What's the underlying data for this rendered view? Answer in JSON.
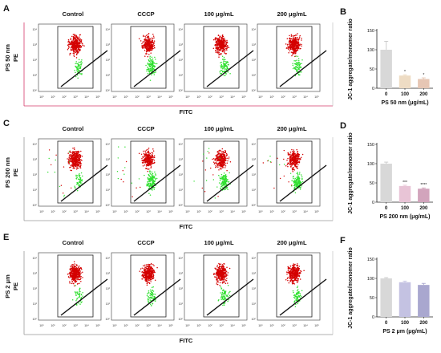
{
  "palette": {
    "red": "#d40000",
    "green": "#2fe02f",
    "frame": "#555555",
    "panelA_axis": "#d43a6a",
    "bar_fill": [
      "#d8d8d8",
      "#eedcc4",
      "#e6c6b4"
    ],
    "bar_fill_row2": [
      "#d8d8d8",
      "#e8c4d6",
      "#d2a4bc"
    ],
    "bar_fill_row3": [
      "#d8d8d8",
      "#c4c2e2",
      "#a9a7cf"
    ]
  },
  "condition_labels": [
    "Control",
    "CCCP",
    "100 μg/mL",
    "200 μg/mL"
  ],
  "flow_rows": [
    {
      "letter": "A",
      "ylabel_line1": "PS 50 nm",
      "ylabel_line2": "PE",
      "xlabel": "FITC",
      "xticks": [
        "10⁰",
        "10¹",
        "10²",
        "10³",
        "10⁴",
        "10⁵"
      ],
      "yticks": [
        "10⁰",
        "10¹",
        "10²",
        "10³",
        "10⁴"
      ],
      "green_share": [
        0.13,
        0.32,
        0.2,
        0.18
      ]
    },
    {
      "letter": "C",
      "ylabel_line1": "PS 200 nm",
      "ylabel_line2": "PE",
      "xlabel": "FITC",
      "xticks": [
        "10⁰",
        "10¹",
        "10²",
        "10³",
        "10⁴",
        "10⁵"
      ],
      "yticks": [
        "10⁰",
        "10¹",
        "10²",
        "10³",
        "10⁴"
      ],
      "green_share": [
        0.13,
        0.36,
        0.3,
        0.32
      ]
    },
    {
      "letter": "E",
      "ylabel_line1": "PS 2 μm",
      "ylabel_line2": "PE",
      "xlabel": "FITC",
      "xticks": [
        "10⁰",
        "10¹",
        "10²",
        "10³",
        "10⁴",
        "10⁵"
      ],
      "yticks": [
        "10⁰",
        "10¹",
        "10²",
        "10³",
        "10⁴"
      ],
      "green_share": [
        0.12,
        0.14,
        0.14,
        0.16
      ]
    }
  ],
  "chart_data": [
    {
      "type": "bar",
      "letter": "B",
      "categories": [
        "0",
        "100",
        "200"
      ],
      "values": [
        100,
        33,
        24
      ],
      "errors": [
        22,
        2,
        3
      ],
      "significance": [
        "",
        "*",
        "*"
      ],
      "xlabel": "PS 50 nm (μg/mL)",
      "ylabel": "JC-1 aggregate/monomer ratio",
      "ylim": [
        0,
        150
      ],
      "yticks": [
        "0",
        "50",
        "100",
        "150"
      ]
    },
    {
      "type": "bar",
      "letter": "D",
      "categories": [
        "0",
        "100",
        "200"
      ],
      "values": [
        100,
        42,
        35
      ],
      "errors": [
        4,
        2,
        2
      ],
      "significance": [
        "",
        "***",
        "****"
      ],
      "xlabel": "PS 200 nm (μg/mL)",
      "ylabel": "JC-1 aggregate/monomer ratio",
      "ylim": [
        0,
        150
      ],
      "yticks": [
        "0",
        "50",
        "100",
        "150"
      ]
    },
    {
      "type": "bar",
      "letter": "F",
      "categories": [
        "0",
        "100",
        "200"
      ],
      "values": [
        100,
        90,
        83
      ],
      "errors": [
        2,
        3,
        4
      ],
      "significance": [
        "",
        "",
        ""
      ],
      "xlabel": "PS 2 μm (μg/mL)",
      "ylabel": "JC-1 aggregate/monomer ratio",
      "ylim": [
        0,
        150
      ],
      "yticks": [
        "0",
        "50",
        "100",
        "150"
      ]
    }
  ]
}
